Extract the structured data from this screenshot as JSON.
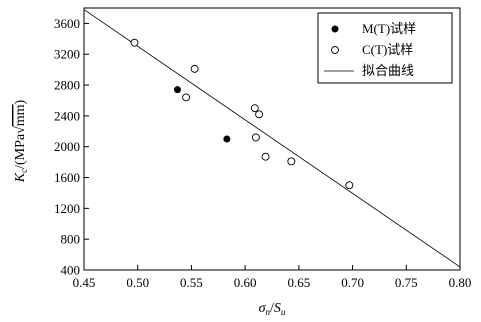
{
  "chart_data": {
    "type": "scatter",
    "xlabel": "σn/Su",
    "ylabel": "Kc/(MPa√mm)",
    "xlim": [
      0.45,
      0.8
    ],
    "ylim": [
      400,
      3800
    ],
    "x_ticks": [
      "0.45",
      "0.50",
      "0.55",
      "0.60",
      "0.65",
      "0.70",
      "0.75",
      "0.80"
    ],
    "y_ticks": [
      "400",
      "800",
      "1200",
      "1600",
      "2000",
      "2400",
      "2800",
      "3200",
      "3600"
    ],
    "grid": false,
    "legend_position": "top-right",
    "series": [
      {
        "name": "M(T)试样",
        "marker": "filled-circle",
        "color": "#000000",
        "points": [
          {
            "x": 0.537,
            "y": 2740
          },
          {
            "x": 0.583,
            "y": 2100
          }
        ]
      },
      {
        "name": "C(T)试样",
        "marker": "open-circle",
        "color": "#000000",
        "points": [
          {
            "x": 0.497,
            "y": 3350
          },
          {
            "x": 0.545,
            "y": 2640
          },
          {
            "x": 0.553,
            "y": 3010
          },
          {
            "x": 0.609,
            "y": 2500
          },
          {
            "x": 0.613,
            "y": 2420
          },
          {
            "x": 0.61,
            "y": 2120
          },
          {
            "x": 0.619,
            "y": 1870
          },
          {
            "x": 0.643,
            "y": 1810
          },
          {
            "x": 0.697,
            "y": 1500
          }
        ]
      },
      {
        "name": "拟合曲线",
        "type": "line",
        "color": "#000000",
        "points": [
          {
            "x": 0.45,
            "y": 3780
          },
          {
            "x": 0.8,
            "y": 440
          }
        ]
      }
    ]
  }
}
